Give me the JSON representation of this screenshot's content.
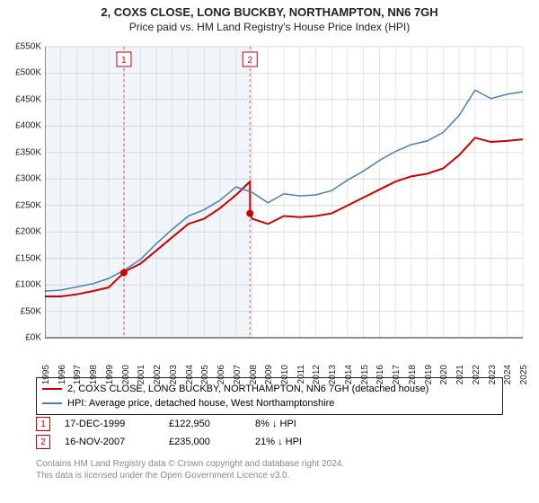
{
  "header": {
    "title": "2, COXS  CLOSE, LONG BUCKBY, NORTHAMPTON, NN6 7GH",
    "subtitle": "Price paid vs. HM Land Registry's House Price Index (HPI)"
  },
  "chart": {
    "type": "line",
    "plot_bg": "#ffffff",
    "band_bg": "#e8eff6",
    "grid_color": "#cccccc",
    "axis_color": "#222222",
    "label_fontsize": 10,
    "x_years": [
      1995,
      1996,
      1997,
      1998,
      1999,
      2000,
      2001,
      2002,
      2003,
      2004,
      2005,
      2006,
      2007,
      2008,
      2009,
      2010,
      2011,
      2012,
      2013,
      2014,
      2015,
      2016,
      2017,
      2018,
      2019,
      2020,
      2021,
      2022,
      2023,
      2024,
      2025
    ],
    "xlim": [
      1995,
      2025
    ],
    "ylim": [
      0,
      550000
    ],
    "ytick_step": 50000,
    "y_prefix": "£",
    "y_suffix": "K",
    "series": [
      {
        "name": "property",
        "color": "#cc0000",
        "width": 2,
        "points": [
          [
            1995,
            78000
          ],
          [
            1996,
            78000
          ],
          [
            1997,
            82000
          ],
          [
            1998,
            88000
          ],
          [
            1999,
            95000
          ],
          [
            1999.96,
            122950
          ],
          [
            2000,
            125000
          ],
          [
            2001,
            140000
          ],
          [
            2002,
            165000
          ],
          [
            2003,
            190000
          ],
          [
            2004,
            215000
          ],
          [
            2005,
            225000
          ],
          [
            2006,
            245000
          ],
          [
            2007,
            270000
          ],
          [
            2007.87,
            295000
          ],
          [
            2007.88,
            235000
          ],
          [
            2008,
            225000
          ],
          [
            2009,
            215000
          ],
          [
            2010,
            230000
          ],
          [
            2011,
            228000
          ],
          [
            2012,
            230000
          ],
          [
            2013,
            235000
          ],
          [
            2014,
            250000
          ],
          [
            2015,
            265000
          ],
          [
            2016,
            280000
          ],
          [
            2017,
            295000
          ],
          [
            2018,
            305000
          ],
          [
            2019,
            310000
          ],
          [
            2020,
            320000
          ],
          [
            2021,
            345000
          ],
          [
            2022,
            378000
          ],
          [
            2023,
            370000
          ],
          [
            2024,
            372000
          ],
          [
            2025,
            375000
          ]
        ]
      },
      {
        "name": "hpi",
        "color": "#4a7fb0",
        "width": 1.5,
        "points": [
          [
            1995,
            88000
          ],
          [
            1996,
            90000
          ],
          [
            1997,
            96000
          ],
          [
            1998,
            102000
          ],
          [
            1999,
            112000
          ],
          [
            2000,
            128000
          ],
          [
            2001,
            148000
          ],
          [
            2002,
            178000
          ],
          [
            2003,
            205000
          ],
          [
            2004,
            230000
          ],
          [
            2005,
            242000
          ],
          [
            2006,
            260000
          ],
          [
            2007,
            285000
          ],
          [
            2008,
            275000
          ],
          [
            2009,
            255000
          ],
          [
            2010,
            272000
          ],
          [
            2011,
            268000
          ],
          [
            2012,
            270000
          ],
          [
            2013,
            278000
          ],
          [
            2014,
            298000
          ],
          [
            2015,
            315000
          ],
          [
            2016,
            335000
          ],
          [
            2017,
            352000
          ],
          [
            2018,
            365000
          ],
          [
            2019,
            372000
          ],
          [
            2020,
            388000
          ],
          [
            2021,
            420000
          ],
          [
            2022,
            468000
          ],
          [
            2023,
            452000
          ],
          [
            2024,
            460000
          ],
          [
            2025,
            465000
          ]
        ]
      }
    ],
    "markers": [
      {
        "n": "1",
        "x": 1999.96,
        "y": 122950,
        "color": "#cc0000"
      },
      {
        "n": "2",
        "x": 2007.87,
        "y": 235000,
        "color": "#cc0000"
      }
    ],
    "marker_box_border": "#cc0000",
    "marker_box_bg": "#ffffff",
    "marker_dashline_color": "#cc6666"
  },
  "legend": {
    "items": [
      {
        "color": "#cc0000",
        "label": "2, COXS  CLOSE, LONG BUCKBY, NORTHAMPTON, NN6 7GH (detached house)"
      },
      {
        "color": "#4a7fb0",
        "label": "HPI: Average price, detached house, West Northamptonshire"
      }
    ]
  },
  "transactions": [
    {
      "n": "1",
      "date": "17-DEC-1999",
      "price": "£122,950",
      "delta": "8% ↓ HPI"
    },
    {
      "n": "2",
      "date": "16-NOV-2007",
      "price": "£235,000",
      "delta": "21% ↓ HPI"
    }
  ],
  "footnote": {
    "line1": "Contains HM Land Registry data © Crown copyright and database right 2024.",
    "line2": "This data is licensed under the Open Government Licence v3.0."
  }
}
